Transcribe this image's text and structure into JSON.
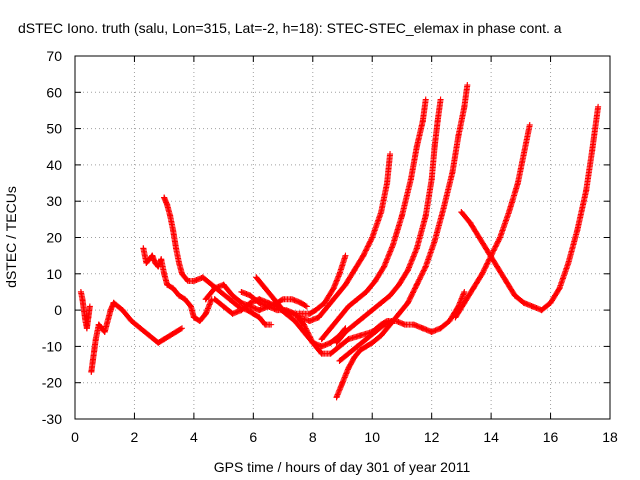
{
  "chart_data": {
    "type": "scatter",
    "title": "dSTEC Iono. truth (salu, Lon=315, Lat=-2, h=18): STEC-STEC_elemax in phase cont. a",
    "xlabel": "GPS time / hours of day 301 of year 2011",
    "ylabel": "dSTEC  / TECUs",
    "xlim": [
      0,
      18
    ],
    "ylim": [
      -30,
      70
    ],
    "x_ticks": [
      0,
      2,
      4,
      6,
      8,
      10,
      12,
      14,
      16,
      18
    ],
    "y_ticks": [
      -30,
      -20,
      -10,
      0,
      10,
      20,
      30,
      40,
      50,
      60,
      70
    ],
    "grid": true,
    "legend": "none",
    "marker": "plus",
    "color": "#ff0000",
    "series": [
      {
        "points": [
          [
            0.2,
            5
          ],
          [
            0.25,
            3
          ],
          [
            0.3,
            0
          ],
          [
            0.35,
            -3
          ],
          [
            0.4,
            -5
          ],
          [
            0.45,
            -2
          ],
          [
            0.5,
            1
          ]
        ]
      },
      {
        "points": [
          [
            0.55,
            -17
          ],
          [
            0.6,
            -14
          ],
          [
            0.65,
            -11
          ],
          [
            0.7,
            -8
          ],
          [
            0.75,
            -6
          ],
          [
            0.8,
            -4
          ],
          [
            0.9,
            -5
          ],
          [
            1.0,
            -6
          ],
          [
            1.1,
            -3
          ],
          [
            1.2,
            0
          ],
          [
            1.3,
            2
          ]
        ]
      },
      {
        "points": [
          [
            1.3,
            2
          ],
          [
            1.6,
            0
          ],
          [
            1.9,
            -3
          ],
          [
            2.2,
            -5
          ],
          [
            2.5,
            -7
          ],
          [
            2.8,
            -9
          ],
          [
            3.0,
            -8
          ],
          [
            3.2,
            -7
          ],
          [
            3.4,
            -6
          ],
          [
            3.6,
            -5
          ]
        ]
      },
      {
        "points": [
          [
            2.3,
            17
          ],
          [
            2.4,
            13
          ],
          [
            2.5,
            14
          ],
          [
            2.6,
            15
          ],
          [
            2.7,
            13
          ],
          [
            2.8,
            12
          ],
          [
            2.9,
            14
          ],
          [
            3.0,
            10
          ],
          [
            3.1,
            7
          ],
          [
            3.3,
            6
          ],
          [
            3.5,
            4
          ],
          [
            3.7,
            3
          ],
          [
            3.9,
            1
          ],
          [
            4.0,
            -2
          ],
          [
            4.2,
            -3
          ],
          [
            4.4,
            -1
          ],
          [
            4.6,
            3
          ]
        ]
      },
      {
        "points": [
          [
            3.0,
            31
          ],
          [
            3.1,
            29
          ],
          [
            3.2,
            26
          ],
          [
            3.3,
            22
          ],
          [
            3.4,
            17
          ],
          [
            3.5,
            13
          ],
          [
            3.6,
            10
          ],
          [
            3.8,
            8
          ],
          [
            4.0,
            8
          ],
          [
            4.3,
            9
          ],
          [
            4.6,
            7
          ],
          [
            4.9,
            5
          ],
          [
            5.2,
            3
          ],
          [
            5.5,
            1
          ],
          [
            5.8,
            0
          ],
          [
            6.0,
            -1
          ],
          [
            6.2,
            -2
          ],
          [
            6.4,
            -4
          ],
          [
            6.6,
            -4
          ]
        ]
      },
      {
        "points": [
          [
            4.4,
            3
          ],
          [
            4.7,
            6
          ],
          [
            5.0,
            7
          ],
          [
            5.3,
            4
          ],
          [
            5.6,
            2
          ],
          [
            5.9,
            1
          ],
          [
            6.2,
            0
          ],
          [
            6.5,
            1
          ],
          [
            6.8,
            2
          ],
          [
            7.0,
            3
          ],
          [
            7.3,
            3
          ],
          [
            7.6,
            2
          ],
          [
            7.8,
            1
          ]
        ]
      },
      {
        "points": [
          [
            4.7,
            3
          ],
          [
            5.0,
            1
          ],
          [
            5.3,
            -1
          ],
          [
            5.6,
            0
          ],
          [
            5.9,
            2
          ],
          [
            6.2,
            3
          ],
          [
            6.5,
            2
          ],
          [
            6.8,
            1
          ],
          [
            7.1,
            -1
          ],
          [
            7.4,
            -3
          ],
          [
            7.7,
            -6
          ],
          [
            8.0,
            -9
          ],
          [
            8.3,
            -10
          ],
          [
            8.6,
            -9
          ],
          [
            8.9,
            -7
          ],
          [
            9.1,
            -5
          ]
        ]
      },
      {
        "points": [
          [
            5.6,
            5
          ],
          [
            5.9,
            4
          ],
          [
            6.2,
            2
          ],
          [
            6.5,
            1
          ],
          [
            6.8,
            0
          ],
          [
            7.1,
            0
          ],
          [
            7.4,
            -1
          ],
          [
            7.7,
            -4
          ],
          [
            8.0,
            -9
          ],
          [
            8.3,
            -12
          ],
          [
            8.6,
            -12
          ],
          [
            8.9,
            -10
          ],
          [
            9.2,
            -8
          ],
          [
            9.6,
            -7
          ],
          [
            10.0,
            -6
          ],
          [
            10.3,
            -4
          ],
          [
            10.5,
            -3
          ],
          [
            10.8,
            -3
          ],
          [
            11.1,
            -4
          ],
          [
            11.4,
            -4
          ],
          [
            11.7,
            -5
          ],
          [
            12.0,
            -6
          ],
          [
            12.3,
            -5
          ],
          [
            12.6,
            -3
          ],
          [
            12.9,
            1
          ],
          [
            13.1,
            5
          ]
        ]
      },
      {
        "points": [
          [
            6.1,
            9
          ],
          [
            6.4,
            6
          ],
          [
            6.7,
            3
          ],
          [
            7.0,
            0
          ],
          [
            7.3,
            -1
          ],
          [
            7.6,
            -1
          ],
          [
            7.9,
            -1
          ],
          [
            8.1,
            0
          ],
          [
            8.4,
            2
          ],
          [
            8.7,
            6
          ],
          [
            8.9,
            10
          ],
          [
            9.1,
            15
          ]
        ]
      },
      {
        "points": [
          [
            7.5,
            -2
          ],
          [
            7.9,
            -3
          ],
          [
            8.2,
            -2
          ],
          [
            8.5,
            1
          ],
          [
            8.8,
            4
          ],
          [
            9.1,
            7
          ],
          [
            9.4,
            11
          ],
          [
            9.7,
            15
          ],
          [
            10.0,
            20
          ],
          [
            10.3,
            27
          ],
          [
            10.5,
            35
          ],
          [
            10.6,
            43
          ]
        ]
      },
      {
        "points": [
          [
            8.3,
            -8
          ],
          [
            8.6,
            -5
          ],
          [
            8.9,
            -2
          ],
          [
            9.2,
            1
          ],
          [
            9.5,
            3
          ],
          [
            9.8,
            5
          ],
          [
            10.1,
            8
          ],
          [
            10.4,
            12
          ],
          [
            10.7,
            18
          ],
          [
            11.0,
            26
          ],
          [
            11.3,
            36
          ],
          [
            11.5,
            45
          ],
          [
            11.7,
            52
          ],
          [
            11.8,
            58
          ]
        ]
      },
      {
        "points": [
          [
            8.8,
            -9
          ],
          [
            9.1,
            -6
          ],
          [
            9.4,
            -4
          ],
          [
            9.7,
            -2
          ],
          [
            10.0,
            0
          ],
          [
            10.3,
            2
          ],
          [
            10.6,
            4
          ],
          [
            10.9,
            7
          ],
          [
            11.2,
            11
          ],
          [
            11.5,
            17
          ],
          [
            11.8,
            26
          ],
          [
            12.0,
            36
          ],
          [
            12.1,
            45
          ],
          [
            12.2,
            52
          ],
          [
            12.3,
            58
          ]
        ]
      },
      {
        "points": [
          [
            8.8,
            -24
          ],
          [
            9.0,
            -20
          ],
          [
            9.2,
            -16
          ],
          [
            9.4,
            -13
          ],
          [
            9.6,
            -11
          ],
          [
            9.8,
            -10
          ],
          [
            10.0,
            -9
          ],
          [
            10.3,
            -7
          ],
          [
            10.6,
            -4
          ],
          [
            10.9,
            -1
          ],
          [
            11.2,
            2
          ],
          [
            11.5,
            7
          ],
          [
            11.8,
            12
          ],
          [
            12.1,
            19
          ],
          [
            12.4,
            28
          ],
          [
            12.7,
            38
          ],
          [
            12.9,
            48
          ],
          [
            13.1,
            56
          ],
          [
            13.2,
            62
          ]
        ]
      },
      {
        "points": [
          [
            8.9,
            -14
          ],
          [
            9.2,
            -12
          ],
          [
            9.5,
            -10
          ],
          [
            9.8,
            -8
          ],
          [
            10.1,
            -6
          ],
          [
            10.4,
            -4
          ],
          [
            10.7,
            -3
          ]
        ]
      },
      {
        "points": [
          [
            13.0,
            27
          ],
          [
            13.3,
            24
          ],
          [
            13.6,
            20
          ],
          [
            13.9,
            16
          ],
          [
            14.2,
            12
          ],
          [
            14.5,
            8
          ],
          [
            14.8,
            4
          ],
          [
            15.1,
            2
          ],
          [
            15.4,
            1
          ],
          [
            15.7,
            0
          ],
          [
            16.0,
            2
          ],
          [
            16.3,
            6
          ],
          [
            16.6,
            13
          ],
          [
            16.9,
            22
          ],
          [
            17.2,
            33
          ],
          [
            17.4,
            44
          ],
          [
            17.6,
            56
          ]
        ]
      },
      {
        "points": [
          [
            12.8,
            -2
          ],
          [
            13.1,
            2
          ],
          [
            13.4,
            6
          ],
          [
            13.7,
            10
          ],
          [
            14.0,
            15
          ],
          [
            14.3,
            20
          ],
          [
            14.6,
            27
          ],
          [
            14.9,
            35
          ],
          [
            15.1,
            43
          ],
          [
            15.3,
            51
          ]
        ]
      }
    ]
  }
}
